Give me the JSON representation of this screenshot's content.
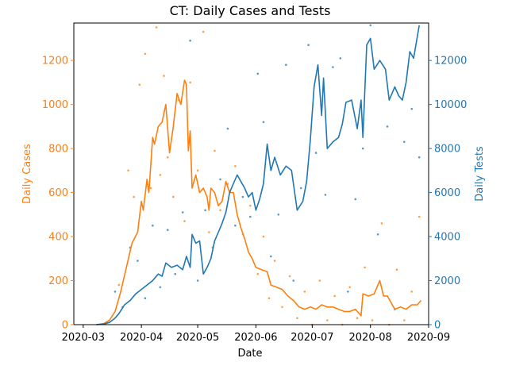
{
  "chart_data": {
    "type": "line",
    "title": "CT: Daily Cases and Tests",
    "xlabel": "Date",
    "ylabel_left": "Daily Cases",
    "ylabel_right": "Daily Tests",
    "x_ticks": [
      "2020-03",
      "2020-04",
      "2020-05",
      "2020-06",
      "2020-07",
      "2020-08",
      "2020-09"
    ],
    "x_range": [
      "2020-02-25",
      "2020-09-01"
    ],
    "ylim_left": [
      0,
      1370
    ],
    "ylim_right": [
      0,
      13700
    ],
    "y_ticks_left": [
      0,
      200,
      400,
      600,
      800,
      1000,
      1200
    ],
    "y_ticks_right": [
      0,
      2000,
      4000,
      6000,
      8000,
      10000,
      12000
    ],
    "grid": false,
    "colors": {
      "cases": "#ff7f0e",
      "tests": "#1f77b4"
    },
    "series": [
      {
        "axis": "left",
        "kind": "smoothed-line",
        "color": "#ff7f0e",
        "points": [
          [
            "2020-03-08",
            0
          ],
          [
            "2020-03-12",
            5
          ],
          [
            "2020-03-15",
            20
          ],
          [
            "2020-03-18",
            60
          ],
          [
            "2020-03-21",
            150
          ],
          [
            "2020-03-24",
            260
          ],
          [
            "2020-03-27",
            370
          ],
          [
            "2020-03-30",
            420
          ],
          [
            "2020-04-01",
            560
          ],
          [
            "2020-04-02",
            520
          ],
          [
            "2020-04-04",
            660
          ],
          [
            "2020-04-05",
            600
          ],
          [
            "2020-04-07",
            850
          ],
          [
            "2020-04-08",
            820
          ],
          [
            "2020-04-10",
            900
          ],
          [
            "2020-04-12",
            920
          ],
          [
            "2020-04-14",
            1000
          ],
          [
            "2020-04-16",
            780
          ],
          [
            "2020-04-18",
            900
          ],
          [
            "2020-04-20",
            1050
          ],
          [
            "2020-04-22",
            1000
          ],
          [
            "2020-04-24",
            1110
          ],
          [
            "2020-04-25",
            1090
          ],
          [
            "2020-04-26",
            790
          ],
          [
            "2020-04-27",
            880
          ],
          [
            "2020-04-28",
            620
          ],
          [
            "2020-04-30",
            680
          ],
          [
            "2020-05-02",
            600
          ],
          [
            "2020-05-04",
            620
          ],
          [
            "2020-05-06",
            580
          ],
          [
            "2020-05-07",
            520
          ],
          [
            "2020-05-08",
            620
          ],
          [
            "2020-05-10",
            600
          ],
          [
            "2020-05-12",
            540
          ],
          [
            "2020-05-14",
            560
          ],
          [
            "2020-05-16",
            650
          ],
          [
            "2020-05-18",
            600
          ],
          [
            "2020-05-20",
            600
          ],
          [
            "2020-05-22",
            500
          ],
          [
            "2020-05-24",
            440
          ],
          [
            "2020-05-26",
            390
          ],
          [
            "2020-05-28",
            330
          ],
          [
            "2020-05-30",
            300
          ],
          [
            "2020-06-01",
            260
          ],
          [
            "2020-06-04",
            250
          ],
          [
            "2020-06-07",
            240
          ],
          [
            "2020-06-09",
            180
          ],
          [
            "2020-06-12",
            170
          ],
          [
            "2020-06-15",
            160
          ],
          [
            "2020-06-18",
            130
          ],
          [
            "2020-06-21",
            110
          ],
          [
            "2020-06-24",
            80
          ],
          [
            "2020-06-27",
            70
          ],
          [
            "2020-06-30",
            80
          ],
          [
            "2020-07-03",
            70
          ],
          [
            "2020-07-06",
            90
          ],
          [
            "2020-07-09",
            80
          ],
          [
            "2020-07-12",
            80
          ],
          [
            "2020-07-15",
            70
          ],
          [
            "2020-07-18",
            60
          ],
          [
            "2020-07-21",
            60
          ],
          [
            "2020-07-24",
            70
          ],
          [
            "2020-07-27",
            40
          ],
          [
            "2020-07-28",
            140
          ],
          [
            "2020-07-31",
            130
          ],
          [
            "2020-08-03",
            140
          ],
          [
            "2020-08-05",
            180
          ],
          [
            "2020-08-06",
            200
          ],
          [
            "2020-08-08",
            130
          ],
          [
            "2020-08-10",
            130
          ],
          [
            "2020-08-12",
            100
          ],
          [
            "2020-08-14",
            70
          ],
          [
            "2020-08-17",
            80
          ],
          [
            "2020-08-20",
            70
          ],
          [
            "2020-08-23",
            90
          ],
          [
            "2020-08-26",
            90
          ],
          [
            "2020-08-28",
            110
          ]
        ]
      },
      {
        "axis": "right",
        "kind": "smoothed-line",
        "color": "#1f77b4",
        "points": [
          [
            "2020-03-08",
            0
          ],
          [
            "2020-03-12",
            30
          ],
          [
            "2020-03-15",
            100
          ],
          [
            "2020-03-18",
            300
          ],
          [
            "2020-03-20",
            500
          ],
          [
            "2020-03-23",
            900
          ],
          [
            "2020-03-26",
            1100
          ],
          [
            "2020-03-29",
            1400
          ],
          [
            "2020-04-01",
            1600
          ],
          [
            "2020-04-04",
            1800
          ],
          [
            "2020-04-07",
            2000
          ],
          [
            "2020-04-10",
            2300
          ],
          [
            "2020-04-12",
            2200
          ],
          [
            "2020-04-14",
            2800
          ],
          [
            "2020-04-17",
            2600
          ],
          [
            "2020-04-20",
            2700
          ],
          [
            "2020-04-23",
            2500
          ],
          [
            "2020-04-25",
            3100
          ],
          [
            "2020-04-27",
            2600
          ],
          [
            "2020-04-28",
            4100
          ],
          [
            "2020-04-30",
            3700
          ],
          [
            "2020-05-02",
            3800
          ],
          [
            "2020-05-04",
            2300
          ],
          [
            "2020-05-06",
            2600
          ],
          [
            "2020-05-08",
            3000
          ],
          [
            "2020-05-10",
            3800
          ],
          [
            "2020-05-12",
            4200
          ],
          [
            "2020-05-14",
            4600
          ],
          [
            "2020-05-16",
            5100
          ],
          [
            "2020-05-18",
            6000
          ],
          [
            "2020-05-20",
            6400
          ],
          [
            "2020-05-22",
            6800
          ],
          [
            "2020-05-24",
            6500
          ],
          [
            "2020-05-26",
            6200
          ],
          [
            "2020-05-28",
            5800
          ],
          [
            "2020-05-30",
            6000
          ],
          [
            "2020-06-01",
            5200
          ],
          [
            "2020-06-03",
            5700
          ],
          [
            "2020-06-05",
            6400
          ],
          [
            "2020-06-07",
            8200
          ],
          [
            "2020-06-09",
            7000
          ],
          [
            "2020-06-11",
            7600
          ],
          [
            "2020-06-14",
            6800
          ],
          [
            "2020-06-17",
            7200
          ],
          [
            "2020-06-20",
            7000
          ],
          [
            "2020-06-23",
            5200
          ],
          [
            "2020-06-26",
            5600
          ],
          [
            "2020-06-28",
            6500
          ],
          [
            "2020-06-30",
            8400
          ],
          [
            "2020-07-02",
            10800
          ],
          [
            "2020-07-04",
            11800
          ],
          [
            "2020-07-06",
            9500
          ],
          [
            "2020-07-07",
            11200
          ],
          [
            "2020-07-09",
            8000
          ],
          [
            "2020-07-12",
            8300
          ],
          [
            "2020-07-15",
            8500
          ],
          [
            "2020-07-17",
            9100
          ],
          [
            "2020-07-19",
            10100
          ],
          [
            "2020-07-22",
            10200
          ],
          [
            "2020-07-25",
            8900
          ],
          [
            "2020-07-27",
            10200
          ],
          [
            "2020-07-28",
            8500
          ],
          [
            "2020-07-30",
            12700
          ],
          [
            "2020-08-01",
            13000
          ],
          [
            "2020-08-03",
            11600
          ],
          [
            "2020-08-06",
            12000
          ],
          [
            "2020-08-09",
            11600
          ],
          [
            "2020-08-11",
            10200
          ],
          [
            "2020-08-14",
            10800
          ],
          [
            "2020-08-16",
            10400
          ],
          [
            "2020-08-18",
            10200
          ],
          [
            "2020-08-20",
            11000
          ],
          [
            "2020-08-22",
            12400
          ],
          [
            "2020-08-24",
            12100
          ],
          [
            "2020-08-27",
            13600
          ]
        ]
      },
      {
        "axis": "left",
        "kind": "scatter",
        "color": "#ff7f0e",
        "points": [
          [
            "2020-03-20",
            180
          ],
          [
            "2020-03-25",
            700
          ],
          [
            "2020-03-28",
            580
          ],
          [
            "2020-03-31",
            1090
          ],
          [
            "2020-04-03",
            1230
          ],
          [
            "2020-04-06",
            620
          ],
          [
            "2020-04-09",
            1350
          ],
          [
            "2020-04-11",
            680
          ],
          [
            "2020-04-13",
            1130
          ],
          [
            "2020-04-15",
            760
          ],
          [
            "2020-04-18",
            580
          ],
          [
            "2020-04-21",
            1020
          ],
          [
            "2020-04-24",
            470
          ],
          [
            "2020-04-27",
            1100
          ],
          [
            "2020-05-01",
            700
          ],
          [
            "2020-05-04",
            1330
          ],
          [
            "2020-05-07",
            420
          ],
          [
            "2020-05-10",
            790
          ],
          [
            "2020-05-13",
            520
          ],
          [
            "2020-05-17",
            640
          ],
          [
            "2020-05-21",
            720
          ],
          [
            "2020-05-25",
            410
          ],
          [
            "2020-05-29",
            540
          ],
          [
            "2020-06-02",
            230
          ],
          [
            "2020-06-05",
            400
          ],
          [
            "2020-06-08",
            120
          ],
          [
            "2020-06-11",
            290
          ],
          [
            "2020-06-15",
            80
          ],
          [
            "2020-06-19",
            220
          ],
          [
            "2020-06-23",
            30
          ],
          [
            "2020-06-27",
            150
          ],
          [
            "2020-07-01",
            0
          ],
          [
            "2020-07-05",
            200
          ],
          [
            "2020-07-09",
            20
          ],
          [
            "2020-07-13",
            130
          ],
          [
            "2020-07-17",
            0
          ],
          [
            "2020-07-21",
            170
          ],
          [
            "2020-07-25",
            30
          ],
          [
            "2020-07-29",
            260
          ],
          [
            "2020-08-02",
            20
          ],
          [
            "2020-08-07",
            460
          ],
          [
            "2020-08-11",
            0
          ],
          [
            "2020-08-15",
            250
          ],
          [
            "2020-08-19",
            20
          ],
          [
            "2020-08-23",
            150
          ],
          [
            "2020-08-27",
            490
          ]
        ]
      },
      {
        "axis": "right",
        "kind": "scatter",
        "color": "#1f77b4",
        "points": [
          [
            "2020-03-18",
            1500
          ],
          [
            "2020-03-22",
            800
          ],
          [
            "2020-03-26",
            3500
          ],
          [
            "2020-03-30",
            2900
          ],
          [
            "2020-04-03",
            1200
          ],
          [
            "2020-04-07",
            4500
          ],
          [
            "2020-04-11",
            1700
          ],
          [
            "2020-04-15",
            4300
          ],
          [
            "2020-04-19",
            2300
          ],
          [
            "2020-04-23",
            5100
          ],
          [
            "2020-04-27",
            12900
          ],
          [
            "2020-05-01",
            2000
          ],
          [
            "2020-05-05",
            5200
          ],
          [
            "2020-05-09",
            3500
          ],
          [
            "2020-05-13",
            6600
          ],
          [
            "2020-05-17",
            8900
          ],
          [
            "2020-05-21",
            4500
          ],
          [
            "2020-05-25",
            5800
          ],
          [
            "2020-05-29",
            4900
          ],
          [
            "2020-06-02",
            11400
          ],
          [
            "2020-06-05",
            9200
          ],
          [
            "2020-06-09",
            3100
          ],
          [
            "2020-06-13",
            5000
          ],
          [
            "2020-06-17",
            11800
          ],
          [
            "2020-06-21",
            2000
          ],
          [
            "2020-06-25",
            6200
          ],
          [
            "2020-06-29",
            12700
          ],
          [
            "2020-07-03",
            7800
          ],
          [
            "2020-07-08",
            5900
          ],
          [
            "2020-07-12",
            11700
          ],
          [
            "2020-07-16",
            12100
          ],
          [
            "2020-07-20",
            1500
          ],
          [
            "2020-07-24",
            5700
          ],
          [
            "2020-07-28",
            8000
          ],
          [
            "2020-08-01",
            13600
          ],
          [
            "2020-08-05",
            4100
          ],
          [
            "2020-08-10",
            9000
          ],
          [
            "2020-08-14",
            700
          ],
          [
            "2020-08-19",
            8300
          ],
          [
            "2020-08-23",
            9800
          ],
          [
            "2020-08-27",
            7600
          ]
        ]
      }
    ]
  }
}
